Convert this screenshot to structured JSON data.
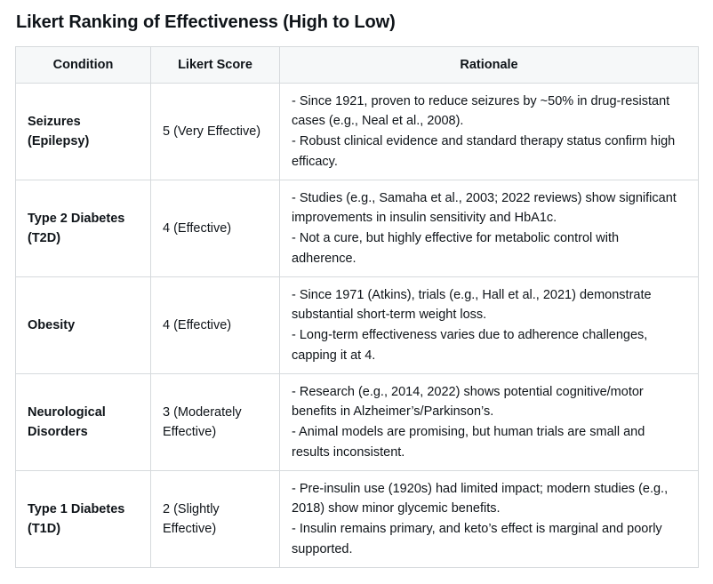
{
  "title": "Likert Ranking of Effectiveness (High to Low)",
  "headers": {
    "condition": "Condition",
    "score": "Likert Score",
    "rationale": "Rationale"
  },
  "rows": [
    {
      "condition": "Seizures (Epilepsy)",
      "score": "5 (Very Effective)",
      "rationale": [
        "- Since 1921, proven to reduce seizures by ~50% in drug-resistant cases (e.g., Neal et al., 2008).",
        "- Robust clinical evidence and standard therapy status confirm high efficacy."
      ]
    },
    {
      "condition": "Type 2 Diabetes (T2D)",
      "score": "4 (Effective)",
      "rationale": [
        "- Studies (e.g., Samaha et al., 2003; 2022 reviews) show significant improvements in insulin sensitivity and HbA1c.",
        "- Not a cure, but highly effective for metabolic control with adherence."
      ]
    },
    {
      "condition": "Obesity",
      "score": "4 (Effective)",
      "rationale": [
        "- Since 1971 (Atkins), trials (e.g., Hall et al., 2021) demonstrate substantial short-term weight loss.",
        "- Long-term effectiveness varies due to adherence challenges, capping it at 4."
      ]
    },
    {
      "condition": "Neurological Disorders",
      "score": "3 (Moderately Effective)",
      "rationale": [
        "- Research (e.g., 2014, 2022) shows potential cognitive/motor benefits in Alzheimer’s/Parkinson’s.",
        "- Animal models are promising, but human trials are small and results inconsistent."
      ]
    },
    {
      "condition": "Type 1 Diabetes (T1D)",
      "score": "2 (Slightly Effective)",
      "rationale": [
        "- Pre-insulin use (1920s) had limited impact; modern studies (e.g., 2018) show minor glycemic benefits.",
        "- Insulin remains primary, and keto’s effect is marginal and poorly supported."
      ]
    }
  ]
}
